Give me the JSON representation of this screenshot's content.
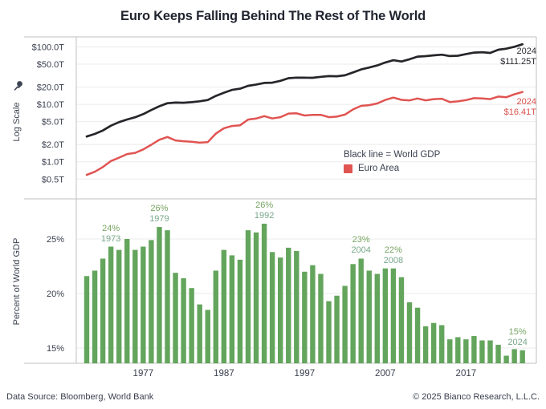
{
  "title": "Euro Keeps Falling Behind The Rest of The World",
  "footer": {
    "source": "Data Source: Bloomberg, World Bank",
    "copyright": "© 2025 Bianco Research, L.L.C."
  },
  "colors": {
    "world_line": "#26262a",
    "euro_line": "#e05452",
    "bar_green": "#63a55c",
    "annotation_pct_green": "#78a562",
    "annotation_year_green": "#7aa88c",
    "axis_text": "#3a3f4e",
    "border_gray": "#c0c0c0",
    "grid_gray": "#ebebeb"
  },
  "chart_data": [
    {
      "type": "line",
      "title": "",
      "ylabel": "Log Scale",
      "ylabel_icon": "pin-icon",
      "log_scale": true,
      "grid": true,
      "y_tick_labels": [
        "$100.0T",
        "$50.0T",
        "$20.0T",
        "$10.0T",
        "$5.0T",
        "$2.0T",
        "$1.0T",
        "$0.5T"
      ],
      "y_tick_values": [
        100,
        50,
        20,
        10,
        5,
        2,
        1,
        0.5
      ],
      "x_start": 1970,
      "x_end": 2024,
      "series": [
        {
          "name": "World GDP",
          "color": "#26262a",
          "values": [
            2.75,
            3.05,
            3.5,
            4.25,
            4.9,
            5.45,
            5.95,
            6.75,
            7.95,
            9.25,
            10.45,
            10.75,
            10.65,
            10.9,
            11.3,
            11.9,
            14.0,
            15.95,
            17.85,
            18.7,
            21.0,
            22.1,
            23.6,
            23.85,
            25.65,
            28.5,
            29.15,
            29.05,
            29.0,
            30.1,
            31.0,
            30.85,
            32.05,
            35.95,
            40.5,
            43.8,
            47.5,
            53.5,
            58.7,
            55.7,
            61.0,
            67.7,
            69.1,
            71.3,
            73.2,
            69.2,
            70.3,
            75.0,
            79.7,
            80.9,
            78.6,
            89.4,
            93.1,
            100.5,
            111.25
          ]
        },
        {
          "name": "Euro Area",
          "color": "#e05452",
          "values": [
            0.59,
            0.67,
            0.81,
            1.03,
            1.18,
            1.36,
            1.43,
            1.64,
            1.98,
            2.41,
            2.7,
            2.35,
            2.28,
            2.23,
            2.15,
            2.2,
            3.09,
            3.83,
            4.2,
            4.32,
            5.42,
            5.66,
            6.23,
            5.68,
            5.98,
            6.9,
            6.97,
            6.39,
            6.55,
            6.56,
            5.98,
            6.11,
            6.63,
            8.16,
            9.4,
            9.68,
            10.36,
            11.93,
            13.09,
            11.98,
            11.71,
            12.66,
            11.75,
            12.33,
            12.52,
            10.93,
            11.25,
            11.85,
            12.83,
            12.7,
            12.34,
            13.68,
            13.31,
            14.97,
            16.41
          ]
        }
      ],
      "legend": {
        "line1": "Black line = World GDP",
        "line2": "Euro Area"
      },
      "end_labels": {
        "world": {
          "line1": "2024",
          "line2": "$111.25T"
        },
        "euro": {
          "line1": "2024",
          "line2": "$16.41T"
        }
      }
    },
    {
      "type": "bar",
      "title": "",
      "ylabel": "Percent of World GDP",
      "bar_color": "#63a55c",
      "grid": true,
      "y_tick_labels": [
        "25%",
        "20%",
        "15%"
      ],
      "y_tick_values": [
        25,
        20,
        15
      ],
      "x_start": 1970,
      "x_end": 2024,
      "x_tick_labels": [
        "1977",
        "1987",
        "1997",
        "2007",
        "2017"
      ],
      "x_tick_years": [
        1977,
        1987,
        1997,
        2007,
        2017
      ],
      "values": [
        21.6,
        22.1,
        23.2,
        24.3,
        24.0,
        25.0,
        24.0,
        24.3,
        24.9,
        26.1,
        25.8,
        21.9,
        21.4,
        20.5,
        19.0,
        18.5,
        22.1,
        24.0,
        23.5,
        23.1,
        25.8,
        25.6,
        26.4,
        23.8,
        23.3,
        24.2,
        23.9,
        22.0,
        22.6,
        21.8,
        19.3,
        19.8,
        20.7,
        22.7,
        23.2,
        22.1,
        21.8,
        22.3,
        22.3,
        21.5,
        19.2,
        18.7,
        17.0,
        17.3,
        17.1,
        15.8,
        16.0,
        15.8,
        16.1,
        15.7,
        15.7,
        15.3,
        14.3,
        14.9,
        14.8
      ],
      "annotations": [
        {
          "year": 1973,
          "pct": "24%",
          "yr": "1973"
        },
        {
          "year": 1979,
          "pct": "26%",
          "yr": "1979"
        },
        {
          "year": 1992,
          "pct": "26%",
          "yr": "1992"
        },
        {
          "year": 2004,
          "pct": "23%",
          "yr": "2004"
        },
        {
          "year": 2008,
          "pct": "22%",
          "yr": "2008"
        },
        {
          "year": 2024,
          "pct": "15%",
          "yr": "2024"
        }
      ]
    }
  ]
}
